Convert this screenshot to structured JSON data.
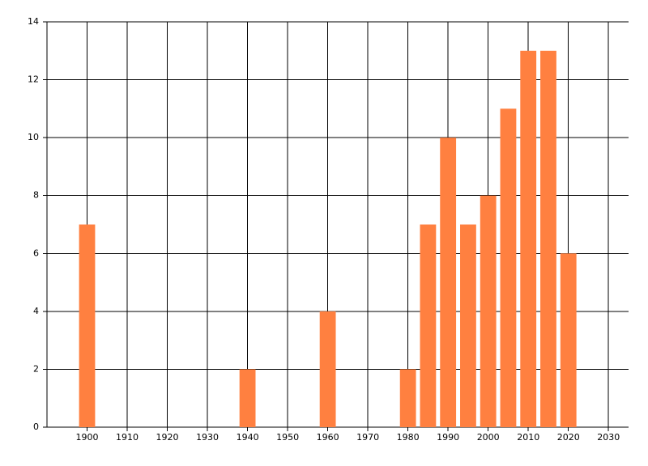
{
  "chart_data": {
    "type": "bar",
    "x": [
      1900,
      1940,
      1960,
      1980,
      1985,
      1990,
      1995,
      2000,
      2005,
      2010,
      2015,
      2020
    ],
    "values": [
      7,
      2,
      4,
      2,
      7,
      10,
      7,
      8,
      11,
      13,
      13,
      6
    ],
    "color": "#ff8040",
    "xlim": [
      1890,
      2035
    ],
    "xticks": [
      1900,
      1910,
      1920,
      1930,
      1940,
      1950,
      1960,
      1970,
      1980,
      1990,
      2000,
      2010,
      2020,
      2030
    ],
    "ylim": [
      0,
      14
    ],
    "yticks": [
      0,
      2,
      4,
      6,
      8,
      10,
      12,
      14
    ],
    "grid": true
  }
}
